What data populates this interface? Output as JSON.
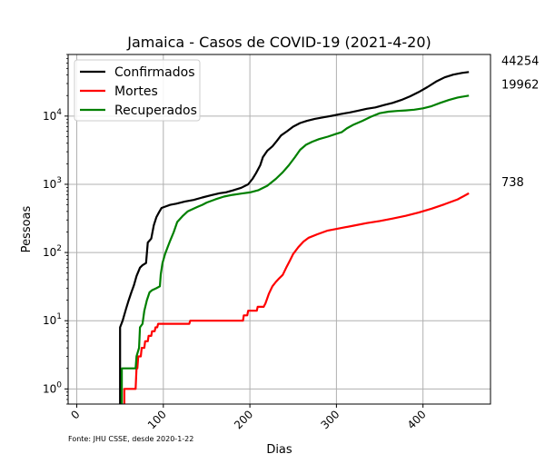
{
  "chart_data": {
    "type": "line",
    "title": "Jamaica - Casos de COVID-19 (2021-4-20)",
    "xlabel": "Dias",
    "ylabel": "Pessoas",
    "yscale": "log",
    "xlim": [
      -10,
      478
    ],
    "ylim": [
      0.6,
      80000
    ],
    "xticks": [
      0,
      100,
      200,
      300,
      400
    ],
    "yticks": [
      {
        "value": 1,
        "label": "10^0"
      },
      {
        "value": 10,
        "label": "10^1"
      },
      {
        "value": 100,
        "label": "10^2"
      },
      {
        "value": 1000,
        "label": "10^3"
      },
      {
        "value": 10000,
        "label": "10^4"
      }
    ],
    "grid": true,
    "legend_position": "top-left",
    "source_note": "Fonte: JHU CSSE, desde 2020-1-22",
    "series": [
      {
        "name": "Confirmados",
        "color": "#000000",
        "final_label": "44254",
        "points": [
          [
            50,
            0.5
          ],
          [
            50,
            8
          ],
          [
            53,
            10
          ],
          [
            57,
            15
          ],
          [
            60,
            20
          ],
          [
            63,
            26
          ],
          [
            66,
            33
          ],
          [
            69,
            45
          ],
          [
            73,
            60
          ],
          [
            76,
            65
          ],
          [
            80,
            70
          ],
          [
            82,
            140
          ],
          [
            86,
            160
          ],
          [
            89,
            250
          ],
          [
            92,
            330
          ],
          [
            95,
            390
          ],
          [
            98,
            450
          ],
          [
            102,
            470
          ],
          [
            108,
            500
          ],
          [
            115,
            520
          ],
          [
            125,
            560
          ],
          [
            135,
            590
          ],
          [
            145,
            640
          ],
          [
            155,
            690
          ],
          [
            165,
            740
          ],
          [
            172,
            760
          ],
          [
            180,
            810
          ],
          [
            190,
            890
          ],
          [
            198,
            1000
          ],
          [
            203,
            1200
          ],
          [
            207,
            1450
          ],
          [
            212,
            1900
          ],
          [
            215,
            2500
          ],
          [
            220,
            3100
          ],
          [
            226,
            3600
          ],
          [
            231,
            4300
          ],
          [
            236,
            5200
          ],
          [
            243,
            6000
          ],
          [
            250,
            7000
          ],
          [
            258,
            7900
          ],
          [
            266,
            8500
          ],
          [
            275,
            9100
          ],
          [
            285,
            9600
          ],
          [
            295,
            10100
          ],
          [
            305,
            10700
          ],
          [
            315,
            11300
          ],
          [
            325,
            12000
          ],
          [
            335,
            12800
          ],
          [
            345,
            13400
          ],
          [
            355,
            14500
          ],
          [
            365,
            15600
          ],
          [
            375,
            17200
          ],
          [
            385,
            19500
          ],
          [
            395,
            22500
          ],
          [
            405,
            26500
          ],
          [
            415,
            32000
          ],
          [
            425,
            37000
          ],
          [
            435,
            40500
          ],
          [
            445,
            43000
          ],
          [
            453,
            44254
          ]
        ]
      },
      {
        "name": "Mortes",
        "color": "#ff0000",
        "final_label": "738",
        "points": [
          [
            55,
            0.5
          ],
          [
            55,
            1
          ],
          [
            68,
            1
          ],
          [
            69,
            2
          ],
          [
            70,
            2
          ],
          [
            71,
            3
          ],
          [
            74,
            3
          ],
          [
            75,
            4
          ],
          [
            78,
            4
          ],
          [
            79,
            5
          ],
          [
            82,
            5
          ],
          [
            83,
            6
          ],
          [
            86,
            6
          ],
          [
            87,
            7
          ],
          [
            90,
            7
          ],
          [
            91,
            8
          ],
          [
            93,
            8
          ],
          [
            94,
            9
          ],
          [
            130,
            9
          ],
          [
            131,
            10
          ],
          [
            192,
            10
          ],
          [
            193,
            12
          ],
          [
            197,
            12
          ],
          [
            198,
            14
          ],
          [
            208,
            14
          ],
          [
            209,
            16
          ],
          [
            216,
            16
          ],
          [
            218,
            18
          ],
          [
            222,
            25
          ],
          [
            226,
            32
          ],
          [
            230,
            37
          ],
          [
            234,
            42
          ],
          [
            238,
            47
          ],
          [
            242,
            60
          ],
          [
            246,
            75
          ],
          [
            250,
            95
          ],
          [
            256,
            120
          ],
          [
            262,
            145
          ],
          [
            268,
            165
          ],
          [
            278,
            185
          ],
          [
            290,
            210
          ],
          [
            305,
            228
          ],
          [
            320,
            248
          ],
          [
            335,
            270
          ],
          [
            350,
            290
          ],
          [
            365,
            315
          ],
          [
            380,
            345
          ],
          [
            395,
            385
          ],
          [
            410,
            440
          ],
          [
            425,
            510
          ],
          [
            440,
            600
          ],
          [
            453,
            738
          ]
        ]
      },
      {
        "name": "Recuperados",
        "color": "#008000",
        "final_label": "19962",
        "points": [
          [
            52,
            0.5
          ],
          [
            52,
            2
          ],
          [
            68,
            2
          ],
          [
            69,
            3
          ],
          [
            72,
            4
          ],
          [
            73,
            8
          ],
          [
            76,
            9
          ],
          [
            78,
            14
          ],
          [
            81,
            20
          ],
          [
            84,
            26
          ],
          [
            87,
            28
          ],
          [
            92,
            30
          ],
          [
            96,
            32
          ],
          [
            97,
            48
          ],
          [
            99,
            70
          ],
          [
            102,
            95
          ],
          [
            105,
            120
          ],
          [
            108,
            150
          ],
          [
            112,
            200
          ],
          [
            116,
            280
          ],
          [
            122,
            340
          ],
          [
            128,
            400
          ],
          [
            135,
            440
          ],
          [
            140,
            470
          ],
          [
            145,
            500
          ],
          [
            150,
            540
          ],
          [
            160,
            600
          ],
          [
            170,
            660
          ],
          [
            180,
            700
          ],
          [
            190,
            730
          ],
          [
            200,
            760
          ],
          [
            210,
            820
          ],
          [
            220,
            950
          ],
          [
            230,
            1200
          ],
          [
            238,
            1500
          ],
          [
            245,
            1900
          ],
          [
            252,
            2500
          ],
          [
            258,
            3200
          ],
          [
            265,
            3800
          ],
          [
            272,
            4200
          ],
          [
            280,
            4600
          ],
          [
            290,
            5000
          ],
          [
            300,
            5500
          ],
          [
            306,
            5800
          ],
          [
            312,
            6600
          ],
          [
            320,
            7500
          ],
          [
            330,
            8500
          ],
          [
            340,
            9800
          ],
          [
            350,
            11000
          ],
          [
            360,
            11600
          ],
          [
            370,
            11900
          ],
          [
            380,
            12100
          ],
          [
            390,
            12400
          ],
          [
            400,
            13000
          ],
          [
            410,
            14000
          ],
          [
            420,
            15600
          ],
          [
            430,
            17200
          ],
          [
            440,
            18700
          ],
          [
            453,
            19962
          ]
        ]
      }
    ]
  }
}
